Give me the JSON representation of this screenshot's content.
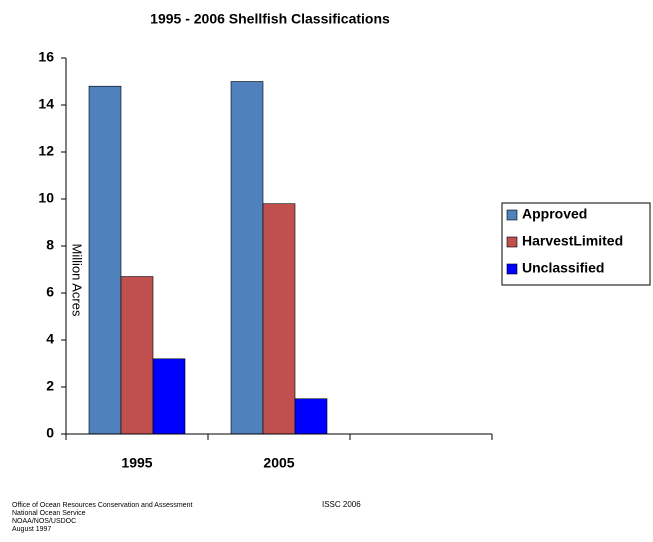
{
  "chart_data": {
    "type": "bar",
    "title": "1995 - 2006 Shellfish Classifications",
    "y_label": "Million Acres",
    "categories": [
      "1995",
      "2005",
      null
    ],
    "series": [
      {
        "name": "Approved",
        "color": "#4f81bd",
        "values": [
          14.8,
          15.0,
          null
        ]
      },
      {
        "name": "HarvestLimited",
        "color": "#c0504d",
        "values": [
          6.7,
          9.8,
          null
        ]
      },
      {
        "name": "Unclassified",
        "color": "#0000ff",
        "values": [
          3.2,
          1.5,
          null
        ]
      }
    ],
    "ylim": [
      0,
      16
    ],
    "yticks": [
      0,
      2,
      4,
      6,
      8,
      10,
      12,
      14,
      16
    ],
    "grid": false,
    "legend": "right",
    "annotations": [
      "Office of Ocean Resources Conservation and Assessment",
      "National Ocean Service",
      "NOAA/NOS/USDOC",
      "August 1997",
      "ISSC 2006"
    ]
  }
}
